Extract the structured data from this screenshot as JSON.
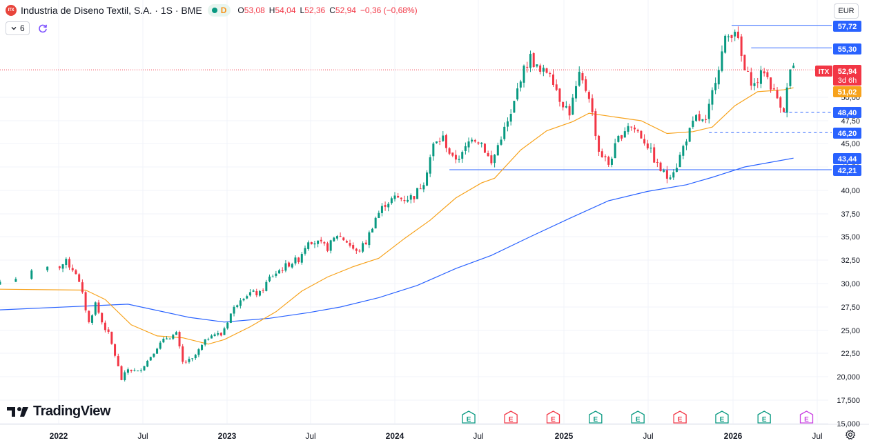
{
  "header": {
    "logo_text": "ITX",
    "symbol_title": "Industria de Diseno Textil, S.A. · 1S · BME",
    "status_label": "D",
    "open_label": "O",
    "open_value": "53,08",
    "high_label": "H",
    "high_value": "54,04",
    "low_label": "L",
    "low_value": "52,36",
    "close_label": "C",
    "close_value": "52,94",
    "change_text": "−0,36 (−0,68%)",
    "indicators_count": "6"
  },
  "currency": "EUR",
  "brand": "TradingView",
  "colors": {
    "up": "#089981",
    "down": "#f23645",
    "ma_fast": "#f7a21b",
    "ma_slow": "#2962ff",
    "level": "#2962ff",
    "grid": "#f0f3fa",
    "price_line": "#f23645"
  },
  "chart_data": {
    "type": "candlestick",
    "interval": "weekly",
    "currency": "EUR",
    "y_axis_ticks": [
      "15,000",
      "17,500",
      "20,000",
      "22,50",
      "25,00",
      "27,50",
      "30,00",
      "32,50",
      "35,00",
      "37,50",
      "40,00",
      "42,50",
      "45,00",
      "47,50",
      "50,00"
    ],
    "x_axis_ticks": [
      "2022",
      "Jul",
      "2023",
      "Jul",
      "2024",
      "Jul",
      "2025",
      "Jul",
      "2026",
      "Jul"
    ],
    "last_price": {
      "value": 52.94,
      "label": "ITX",
      "value_text": "52,94",
      "countdown": "3d 6h"
    },
    "price_labels": [
      {
        "value": 57.72,
        "text": "57,72"
      },
      {
        "value": 55.3,
        "text": "55,30"
      },
      {
        "value": 51.02,
        "text": "51,02",
        "series": "ma_fast"
      },
      {
        "value": 48.4,
        "text": "48,40"
      },
      {
        "value": 46.2,
        "text": "46,20"
      },
      {
        "value": 43.44,
        "text": "43,44",
        "series": "ma_slow"
      },
      {
        "value": 42.21,
        "text": "42,21"
      }
    ],
    "horizontal_levels": [
      {
        "value": 57.72,
        "style": "solid",
        "from": "2025-12-29"
      },
      {
        "value": 55.3,
        "style": "solid",
        "from": "2026-02-09"
      },
      {
        "value": 48.4,
        "style": "dashed",
        "from": "2026-04-20"
      },
      {
        "value": 46.2,
        "style": "dashed",
        "from": "2025-11-10"
      },
      {
        "value": 42.21,
        "style": "solid",
        "from": "2024-04-29"
      }
    ],
    "price_path": [
      [
        "2021-12-06",
        30.2
      ],
      [
        "2021-12-27",
        31.6
      ],
      [
        "2022-01-17",
        32.3
      ],
      [
        "2022-02-07",
        31.2
      ],
      [
        "2022-02-21",
        28.8
      ],
      [
        "2022-03-07",
        25.8
      ],
      [
        "2022-03-21",
        27.9
      ],
      [
        "2022-04-04",
        25.9
      ],
      [
        "2022-04-18",
        24.6
      ],
      [
        "2022-05-02",
        22.3
      ],
      [
        "2022-05-16",
        19.7
      ],
      [
        "2022-05-30",
        20.8
      ],
      [
        "2022-06-20",
        20.5
      ],
      [
        "2022-07-11",
        21.7
      ],
      [
        "2022-08-01",
        23.2
      ],
      [
        "2022-08-22",
        24.2
      ],
      [
        "2022-09-12",
        24.6
      ],
      [
        "2022-09-26",
        21.5
      ],
      [
        "2022-10-17",
        21.8
      ],
      [
        "2022-11-07",
        23.3
      ],
      [
        "2022-11-28",
        24.7
      ],
      [
        "2022-12-19",
        24.5
      ],
      [
        "2023-01-09",
        26.8
      ],
      [
        "2023-01-30",
        28.5
      ],
      [
        "2023-02-20",
        29.0
      ],
      [
        "2023-03-13",
        28.9
      ],
      [
        "2023-04-03",
        30.6
      ],
      [
        "2023-04-24",
        31.4
      ],
      [
        "2023-05-15",
        32.1
      ],
      [
        "2023-06-05",
        32.6
      ],
      [
        "2023-06-26",
        34.7
      ],
      [
        "2023-07-17",
        34.3
      ],
      [
        "2023-08-07",
        33.8
      ],
      [
        "2023-08-28",
        35.2
      ],
      [
        "2023-09-18",
        34.5
      ],
      [
        "2023-10-09",
        33.3
      ],
      [
        "2023-10-30",
        34.4
      ],
      [
        "2023-11-20",
        37.1
      ],
      [
        "2023-12-11",
        38.6
      ],
      [
        "2024-01-01",
        39.2
      ],
      [
        "2024-01-22",
        39.1
      ],
      [
        "2024-02-12",
        39.4
      ],
      [
        "2024-03-04",
        41.0
      ],
      [
        "2024-03-25",
        44.8
      ],
      [
        "2024-04-15",
        45.6
      ],
      [
        "2024-05-06",
        43.3
      ],
      [
        "2024-05-27",
        43.8
      ],
      [
        "2024-06-17",
        45.8
      ],
      [
        "2024-07-08",
        45.1
      ],
      [
        "2024-07-29",
        42.8
      ],
      [
        "2024-08-19",
        45.8
      ],
      [
        "2024-09-09",
        48.0
      ],
      [
        "2024-09-30",
        52.2
      ],
      [
        "2024-10-21",
        54.3
      ],
      [
        "2024-11-11",
        52.6
      ],
      [
        "2024-12-02",
        52.9
      ],
      [
        "2024-12-23",
        49.9
      ],
      [
        "2025-01-13",
        48.4
      ],
      [
        "2025-02-03",
        52.2
      ],
      [
        "2025-02-24",
        50.2
      ],
      [
        "2025-03-17",
        44.2
      ],
      [
        "2025-04-07",
        42.8
      ],
      [
        "2025-04-28",
        45.5
      ],
      [
        "2025-05-19",
        47.1
      ],
      [
        "2025-06-09",
        46.3
      ],
      [
        "2025-06-30",
        44.8
      ],
      [
        "2025-07-21",
        42.6
      ],
      [
        "2025-08-11",
        41.4
      ],
      [
        "2025-09-01",
        42.7
      ],
      [
        "2025-09-22",
        45.6
      ],
      [
        "2025-10-13",
        47.8
      ],
      [
        "2025-11-03",
        47.2
      ],
      [
        "2025-11-24",
        52.1
      ],
      [
        "2025-12-15",
        56.1
      ],
      [
        "2026-01-05",
        57.4
      ],
      [
        "2026-01-26",
        52.8
      ],
      [
        "2026-02-16",
        51.3
      ],
      [
        "2026-03-09",
        52.9
      ],
      [
        "2026-03-30",
        50.5
      ],
      [
        "2026-04-20",
        48.8
      ],
      [
        "2026-05-04",
        52.9
      ],
      [
        "2026-05-11",
        52.94
      ]
    ],
    "ma_fast": [
      [
        "2021-12-06",
        29.4
      ],
      [
        "2022-02-28",
        29.3
      ],
      [
        "2022-04-11",
        28.3
      ],
      [
        "2022-06-06",
        25.6
      ],
      [
        "2022-08-01",
        24.4
      ],
      [
        "2022-09-26",
        24.2
      ],
      [
        "2022-11-21",
        23.5
      ],
      [
        "2022-12-26",
        24.0
      ],
      [
        "2023-02-20",
        25.4
      ],
      [
        "2023-04-17",
        27.0
      ],
      [
        "2023-06-12",
        29.2
      ],
      [
        "2023-08-07",
        30.7
      ],
      [
        "2023-10-02",
        31.8
      ],
      [
        "2023-11-27",
        32.7
      ],
      [
        "2024-01-22",
        34.8
      ],
      [
        "2024-03-18",
        36.8
      ],
      [
        "2024-05-13",
        39.2
      ],
      [
        "2024-07-08",
        40.8
      ],
      [
        "2024-08-05",
        41.3
      ],
      [
        "2024-09-30",
        44.3
      ],
      [
        "2024-11-25",
        46.4
      ],
      [
        "2025-01-20",
        47.4
      ],
      [
        "2025-02-24",
        48.3
      ],
      [
        "2025-04-21",
        47.9
      ],
      [
        "2025-06-16",
        47.5
      ],
      [
        "2025-08-11",
        46.1
      ],
      [
        "2025-10-06",
        46.3
      ],
      [
        "2025-11-17",
        46.8
      ],
      [
        "2026-01-05",
        49.1
      ],
      [
        "2026-02-23",
        50.6
      ],
      [
        "2026-04-20",
        50.8
      ],
      [
        "2026-05-11",
        51.02
      ]
    ],
    "ma_slow": [
      [
        "2021-12-06",
        27.2
      ],
      [
        "2022-05-30",
        27.8
      ],
      [
        "2022-10-10",
        26.4
      ],
      [
        "2022-12-26",
        25.9
      ],
      [
        "2023-04-03",
        26.3
      ],
      [
        "2023-06-26",
        26.9
      ],
      [
        "2023-09-04",
        27.5
      ],
      [
        "2023-11-27",
        28.5
      ],
      [
        "2024-02-19",
        29.8
      ],
      [
        "2024-05-13",
        31.6
      ],
      [
        "2024-07-29",
        33.0
      ],
      [
        "2024-10-21",
        35.0
      ],
      [
        "2025-01-13",
        37.0
      ],
      [
        "2025-04-07",
        38.9
      ],
      [
        "2025-06-30",
        39.9
      ],
      [
        "2025-09-22",
        40.6
      ],
      [
        "2025-11-17",
        41.4
      ],
      [
        "2026-01-26",
        42.5
      ],
      [
        "2026-05-11",
        43.44
      ]
    ],
    "events": [
      {
        "date": "2024-06-10",
        "icon": "E",
        "kind": "earnings-upcoming"
      },
      {
        "date": "2024-09-09",
        "icon": "E",
        "kind": "earnings-miss"
      },
      {
        "date": "2024-12-09",
        "icon": "E",
        "kind": "earnings-miss"
      },
      {
        "date": "2025-03-10",
        "icon": "E",
        "kind": "earnings-beat"
      },
      {
        "date": "2025-06-09",
        "icon": "E",
        "kind": "earnings-beat"
      },
      {
        "date": "2025-09-08",
        "icon": "E",
        "kind": "earnings-miss"
      },
      {
        "date": "2025-12-08",
        "icon": "E",
        "kind": "earnings-beat"
      },
      {
        "date": "2026-03-09",
        "icon": "E",
        "kind": "earnings-beat"
      },
      {
        "date": "2026-06-08",
        "icon": "E",
        "kind": "earnings-future"
      }
    ]
  }
}
